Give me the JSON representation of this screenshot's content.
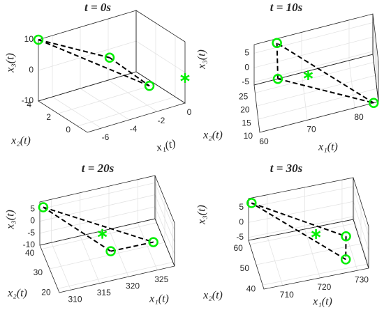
{
  "chart_data": [
    {
      "type": "scatter3d",
      "title": "t = 0s",
      "xlabel": "x₁(t)",
      "ylabel": "x₂(t)",
      "zlabel": "x₃(t)",
      "xlim": [
        -7,
        0
      ],
      "xticks": [
        -6,
        -4,
        -2,
        0
      ],
      "ylim": [
        -1,
        4
      ],
      "yticks": [
        0,
        2,
        4
      ],
      "zlim": [
        -10,
        10
      ],
      "zticks": [
        -10,
        0,
        10
      ],
      "grid": true,
      "series": [
        {
          "marker": "circle",
          "line": "dashed",
          "color": "#00ee00",
          "x": [
            -7,
            -1.9,
            -0.8
          ],
          "y": [
            4,
            4,
            1.5
          ],
          "z": [
            10,
            -2.8,
            -8.4
          ]
        },
        {
          "marker": "asterisk",
          "color": "#00ee00",
          "x": [
            0
          ],
          "y": [
            -1
          ],
          "z": [
            -1.8
          ]
        }
      ]
    },
    {
      "type": "scatter3d",
      "title": "t = 10s",
      "xlabel": "x₁(t)",
      "ylabel": "x₂(t)",
      "zlabel": "x₃(t)",
      "xlim": [
        60,
        85
      ],
      "xticks": [
        60,
        70,
        80
      ],
      "ylim": [
        10,
        28
      ],
      "yticks": [
        10,
        15,
        20,
        25
      ],
      "zlim": [
        -6,
        8
      ],
      "zticks": [
        -5,
        0,
        5
      ],
      "grid": true,
      "series": [
        {
          "marker": "circle",
          "line": "dashed",
          "color": "#00ee00",
          "x": [
            64.8,
            65,
            84
          ],
          "y": [
            28,
            28,
            10
          ],
          "z": [
            6.5,
            -6,
            -6
          ]
        },
        {
          "marker": "asterisk",
          "color": "#00ee00",
          "x": [
            70.8
          ],
          "y": [
            19
          ],
          "z": [
            1
          ]
        }
      ]
    },
    {
      "type": "scatter3d",
      "title": "t = 20s",
      "xlabel": "x₁(t)",
      "ylabel": "x₂(t)",
      "zlabel": "x₃(t)",
      "xlim": [
        308,
        328
      ],
      "xticks": [
        310,
        315,
        320,
        325
      ],
      "ylim": [
        18,
        42
      ],
      "yticks": [
        20,
        30,
        40
      ],
      "zlim": [
        -10,
        8
      ],
      "zticks": [
        -10,
        -5,
        0,
        5
      ],
      "grid": true,
      "series": [
        {
          "marker": "circle",
          "line": "dashed",
          "color": "#00ee00",
          "x": [
            308.6,
            325,
            317.6
          ],
          "y": [
            42,
            22.8,
            22.8
          ],
          "z": [
            5.5,
            -2.3,
            -2
          ]
        },
        {
          "marker": "asterisk",
          "color": "#00ee00",
          "x": [
            317.5
          ],
          "y": [
            32.4
          ],
          "z": [
            -2.6
          ]
        }
      ]
    },
    {
      "type": "scatter3d",
      "title": "t = 30s",
      "xlabel": "x₁(t)",
      "ylabel": "x₂(t)",
      "zlabel": "x₃(t)",
      "xlim": [
        705,
        733
      ],
      "xticks": [
        710,
        720,
        730
      ],
      "ylim": [
        38,
        62
      ],
      "yticks": [
        40,
        50,
        60
      ],
      "zlim": [
        -6,
        8
      ],
      "zticks": [
        -5,
        0,
        5
      ],
      "grid": true,
      "series": [
        {
          "marker": "circle",
          "line": "dashed",
          "color": "#00ee00",
          "x": [
            705.8,
            729,
            727.7
          ],
          "y": [
            62,
            50,
            42.8
          ],
          "z": [
            6.3,
            -2.5,
            -5
          ]
        },
        {
          "marker": "asterisk",
          "color": "#00ee00",
          "x": [
            721.8
          ],
          "y": [
            54.8
          ],
          "z": [
            -3.2
          ]
        }
      ]
    }
  ]
}
